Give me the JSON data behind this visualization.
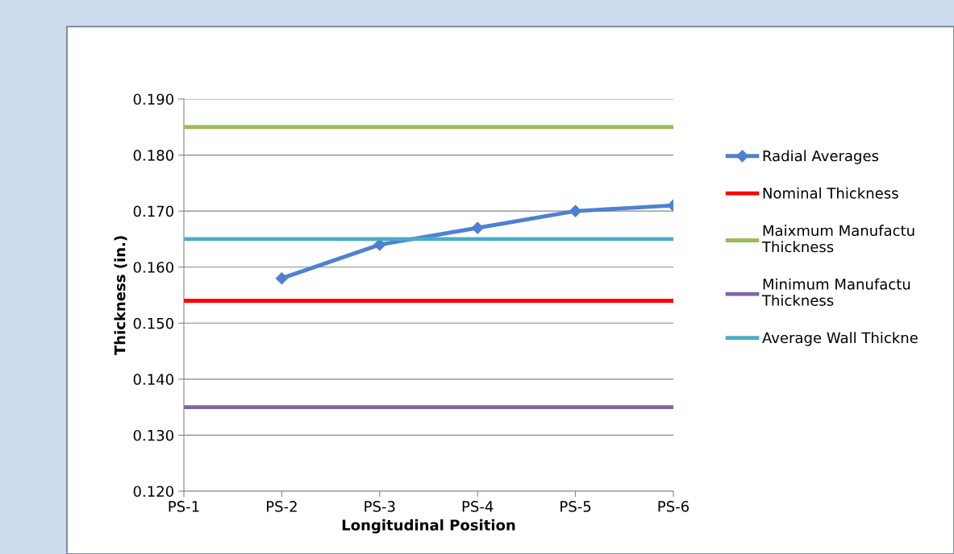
{
  "chart_data": {
    "type": "line",
    "xlabel": "Longitudinal Position",
    "ylabel": "Thickness (in.)",
    "categories": [
      "PS-1",
      "PS-2",
      "PS-3",
      "PS-4",
      "PS-5",
      "PS-6"
    ],
    "series": [
      {
        "name": "Radial Averages",
        "color": "#4f81d0",
        "marker": "diamond",
        "values": [
          null,
          0.158,
          0.164,
          0.167,
          0.17,
          0.171
        ]
      },
      {
        "name": "Nominal Thickness",
        "color": "#ff0000",
        "marker": "none",
        "values": [
          0.154,
          0.154,
          0.154,
          0.154,
          0.154,
          0.154
        ]
      },
      {
        "name": "Maixmum Manufactu\nThickness",
        "color": "#9bbb59",
        "marker": "none",
        "values": [
          0.185,
          0.185,
          0.185,
          0.185,
          0.185,
          0.185
        ]
      },
      {
        "name": "Minimum Manufactu\nThickness",
        "color": "#8064a2",
        "marker": "none",
        "values": [
          0.135,
          0.135,
          0.135,
          0.135,
          0.135,
          0.135
        ]
      },
      {
        "name": "Average Wall Thickne",
        "color": "#4bacc6",
        "marker": "none",
        "values": [
          0.165,
          0.165,
          0.165,
          0.165,
          0.165,
          0.165
        ]
      }
    ],
    "ylim": [
      0.12,
      0.19
    ],
    "yticks": [
      {
        "value": 0.12,
        "label": "0.120"
      },
      {
        "value": 0.13,
        "label": "0.130"
      },
      {
        "value": 0.14,
        "label": "0.140"
      },
      {
        "value": 0.15,
        "label": "0.150"
      },
      {
        "value": 0.16,
        "label": "0.160"
      },
      {
        "value": 0.17,
        "label": "0.170"
      },
      {
        "value": 0.18,
        "label": "0.180"
      },
      {
        "value": 0.19,
        "label": "0.190"
      }
    ],
    "grid": "y",
    "legend": "right",
    "line_style": "solid"
  }
}
